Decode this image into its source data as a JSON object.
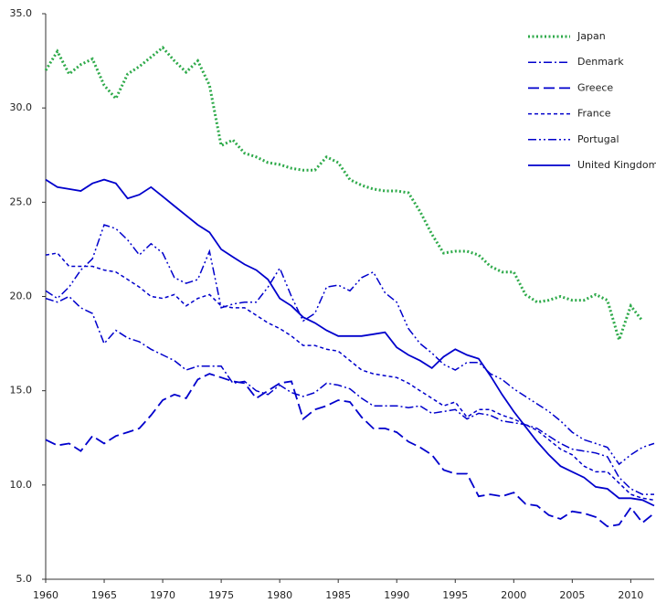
{
  "chart_data": {
    "type": "line",
    "x": [
      1960,
      1961,
      1962,
      1963,
      1964,
      1965,
      1966,
      1967,
      1968,
      1969,
      1970,
      1971,
      1972,
      1973,
      1974,
      1975,
      1976,
      1977,
      1978,
      1979,
      1980,
      1981,
      1982,
      1983,
      1984,
      1985,
      1986,
      1987,
      1988,
      1989,
      1990,
      1991,
      1992,
      1993,
      1994,
      1995,
      1996,
      1997,
      1998,
      1999,
      2000,
      2001,
      2002,
      2003,
      2004,
      2005,
      2006,
      2007,
      2008,
      2009,
      2010,
      2011,
      2012
    ],
    "series": [
      {
        "name": "Japan",
        "color": "#2eaa4a",
        "dash": "2,2.5",
        "width": 3,
        "values": [
          32,
          33,
          31.8,
          32.3,
          32.6,
          31.2,
          30.5,
          31.8,
          32.2,
          32.7,
          33.2,
          32.5,
          31.9,
          32.5,
          31.2,
          28,
          28.3,
          27.6,
          27.4,
          27.1,
          27,
          26.8,
          26.7,
          26.7,
          27.4,
          27.1,
          26.2,
          25.9,
          25.7,
          25.6,
          25.6,
          25.5,
          24.5,
          23.3,
          22.3,
          22.4,
          22.4,
          22.2,
          21.6,
          21.3,
          21.3,
          20.1,
          19.7,
          19.8,
          20.0,
          19.8,
          19.8,
          20.1,
          19.8,
          17.7,
          19.5,
          18.7,
          null
        ]
      },
      {
        "name": "Denmark",
        "color": "#0000cc",
        "dash": "9,3,2,3",
        "width": 1.5,
        "values": [
          19.9,
          19.7,
          20.0,
          19.4,
          19.1,
          17.5,
          18.2,
          17.8,
          17.6,
          17.2,
          16.9,
          16.6,
          16.1,
          16.3,
          16.3,
          16.3,
          15.4,
          15.5,
          15.0,
          14.8,
          15.3,
          14.9,
          14.7,
          14.9,
          15.4,
          15.3,
          15.1,
          14.6,
          14.2,
          14.2,
          14.2,
          14.1,
          14.2,
          13.8,
          13.9,
          14.0,
          13.5,
          13.8,
          13.7,
          13.4,
          13.3,
          13.2,
          13.0,
          12.6,
          12.2,
          11.9,
          11.8,
          11.7,
          11.5,
          10.4,
          9.8,
          9.5,
          9.5
        ]
      },
      {
        "name": "Greece",
        "color": "#0000cc",
        "dash": "12,5",
        "width": 1.8,
        "values": [
          12.4,
          12.1,
          12.2,
          11.8,
          12.6,
          12.2,
          12.6,
          12.8,
          13.0,
          13.7,
          14.5,
          14.8,
          14.6,
          15.6,
          15.9,
          15.7,
          15.5,
          15.4,
          14.6,
          15.0,
          15.4,
          15.5,
          13.5,
          14.0,
          14.2,
          14.5,
          14.4,
          13.6,
          13.0,
          13.0,
          12.8,
          12.3,
          12.0,
          11.6,
          10.8,
          10.6,
          10.6,
          9.4,
          9.5,
          9.4,
          9.6,
          9.0,
          8.9,
          8.4,
          8.2,
          8.6,
          8.5,
          8.3,
          7.8,
          7.9,
          8.8,
          8.0,
          8.5
        ]
      },
      {
        "name": "France",
        "color": "#0000cc",
        "dash": "4,3",
        "width": 1.5,
        "values": [
          22.2,
          22.3,
          21.6,
          21.6,
          21.6,
          21.4,
          21.3,
          20.9,
          20.5,
          20.0,
          19.9,
          20.1,
          19.5,
          19.9,
          20.1,
          19.5,
          19.4,
          19.4,
          19.0,
          18.6,
          18.3,
          17.9,
          17.4,
          17.4,
          17.2,
          17.1,
          16.6,
          16.1,
          15.9,
          15.8,
          15.7,
          15.4,
          15.0,
          14.6,
          14.2,
          14.4,
          13.6,
          14.0,
          14.0,
          13.7,
          13.5,
          13.2,
          12.9,
          12.4,
          11.9,
          11.6,
          11.0,
          10.7,
          10.7,
          10.1,
          9.5,
          9.3,
          9.2
        ]
      },
      {
        "name": "Portugal",
        "color": "#0000cc",
        "dash": "9,3,2,3,2,3",
        "width": 1.5,
        "values": [
          20.3,
          19.9,
          20.5,
          21.4,
          22.0,
          23.8,
          23.6,
          23.0,
          22.2,
          22.8,
          22.3,
          21.0,
          20.7,
          20.9,
          22.4,
          19.4,
          19.6,
          19.7,
          19.7,
          20.5,
          21.5,
          20.0,
          18.7,
          19.1,
          20.5,
          20.6,
          20.3,
          21.0,
          21.3,
          20.2,
          19.7,
          18.3,
          17.5,
          17.0,
          16.4,
          16.1,
          16.5,
          16.5,
          15.9,
          15.6,
          15.1,
          14.7,
          14.3,
          13.9,
          13.4,
          12.8,
          12.4,
          12.2,
          12.0,
          11.1,
          11.6,
          12.0,
          12.2
        ]
      },
      {
        "name": "United Kingdom",
        "color": "#0000cc",
        "dash": "",
        "width": 1.8,
        "values": [
          26.2,
          25.8,
          25.7,
          25.6,
          26.0,
          26.2,
          26.0,
          25.2,
          25.4,
          25.8,
          25.3,
          24.8,
          24.3,
          23.8,
          23.4,
          22.5,
          22.1,
          21.7,
          21.4,
          20.9,
          19.9,
          19.5,
          18.9,
          18.6,
          18.2,
          17.9,
          17.9,
          17.9,
          18.0,
          18.1,
          17.3,
          16.9,
          16.6,
          16.2,
          16.8,
          17.2,
          16.9,
          16.7,
          15.8,
          14.8,
          13.9,
          13.1,
          12.3,
          11.6,
          11.0,
          10.7,
          10.4,
          9.9,
          9.8,
          9.3,
          9.3,
          9.2,
          8.9
        ]
      }
    ],
    "xlim": [
      1960,
      2012
    ],
    "xticks": [
      1960,
      1965,
      1970,
      1975,
      1980,
      1985,
      1990,
      1995,
      2000,
      2005,
      2010
    ],
    "ylim": [
      5,
      35
    ],
    "yticks": [
      {
        "value": 5,
        "label": "5.0"
      },
      {
        "value": 10,
        "label": "10.0"
      },
      {
        "value": 15,
        "label": "15.0"
      },
      {
        "value": 20,
        "label": "20.0"
      },
      {
        "value": 25,
        "label": "25.0"
      },
      {
        "value": 30,
        "label": "30.0"
      },
      {
        "value": 35,
        "label": "35.0"
      }
    ],
    "legend": "upper right"
  }
}
